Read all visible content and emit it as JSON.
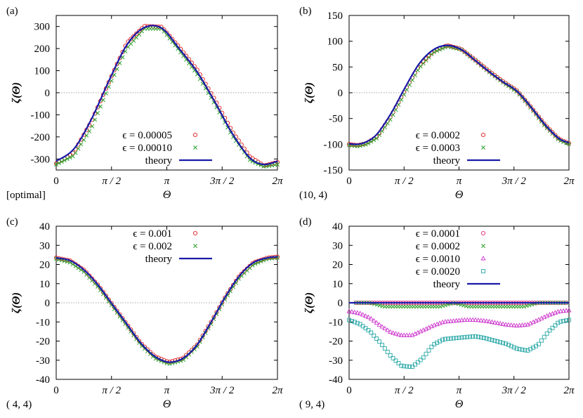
{
  "chart_data": [
    {
      "panel_label": "(a)",
      "case_label": "[optimal]",
      "type": "scatter",
      "xlabel": "Θ",
      "ylabel": "ζ(Θ)",
      "xlim": [
        0,
        6.2832
      ],
      "ylim": [
        -350,
        350
      ],
      "yticks": [
        -300,
        -200,
        -100,
        0,
        100,
        200,
        300
      ],
      "ytick_labels": [
        "-300",
        "-200",
        "-100",
        "0",
        "100",
        "200",
        "300"
      ],
      "xticks": [
        0,
        1.5708,
        3.1416,
        4.7124,
        6.2832
      ],
      "xtick_labels": [
        "0",
        "π / 2",
        "π",
        "3π / 2",
        "2π"
      ],
      "zero_line": true,
      "legend_position": "bottom-right",
      "series": [
        {
          "name": "ϵ = 0.00005",
          "marker": "circle",
          "color": "#e41a1c",
          "x": [
            0,
            0.5,
            1.0,
            1.5,
            2.0,
            2.5,
            3.0,
            3.5,
            4.0,
            4.5,
            5.0,
            5.5,
            5.9,
            6.2832
          ],
          "y": [
            -320,
            -270,
            -130,
            50,
            225,
            302,
            298,
            205,
            105,
            -30,
            -175,
            -290,
            -330,
            -315
          ]
        },
        {
          "name": "ϵ = 0.00010",
          "marker": "cross",
          "color": "#2ca02c",
          "x": [
            0,
            0.5,
            1.0,
            1.5,
            2.0,
            2.5,
            3.0,
            3.5,
            4.0,
            4.5,
            5.0,
            5.5,
            5.9,
            6.2832
          ],
          "y": [
            -325,
            -285,
            -160,
            30,
            200,
            290,
            290,
            190,
            85,
            -50,
            -195,
            -305,
            -335,
            -325
          ]
        },
        {
          "name": "theory",
          "marker": "line",
          "color": "#1a1aa8",
          "x": [
            0,
            0.5,
            1.0,
            1.5,
            2.0,
            2.5,
            3.0,
            3.5,
            4.0,
            4.5,
            5.0,
            5.5,
            5.9,
            6.2832
          ],
          "y": [
            -310,
            -255,
            -120,
            55,
            215,
            295,
            292,
            198,
            95,
            -40,
            -185,
            -295,
            -325,
            -310
          ]
        }
      ]
    },
    {
      "panel_label": "(b)",
      "case_label": "(10, 4)",
      "type": "scatter",
      "xlabel": "Θ",
      "ylabel": "ζ(Θ)",
      "xlim": [
        0,
        6.2832
      ],
      "ylim": [
        -150,
        150
      ],
      "yticks": [
        -150,
        -100,
        -50,
        0,
        50,
        100,
        150
      ],
      "ytick_labels": [
        "-150",
        "-100",
        "-50",
        "0",
        "50",
        "100",
        "150"
      ],
      "xticks": [
        0,
        1.5708,
        3.1416,
        4.7124,
        6.2832
      ],
      "xtick_labels": [
        "0",
        "π / 2",
        "π",
        "3π / 2",
        "2π"
      ],
      "zero_line": true,
      "legend_position": "bottom-right",
      "series": [
        {
          "name": "ϵ = 0.0002",
          "marker": "circle",
          "color": "#e41a1c",
          "x": [
            0,
            0.25,
            0.5,
            0.8,
            1.2,
            1.6,
            2.0,
            2.4,
            2.8,
            3.2,
            3.6,
            4.0,
            4.4,
            4.8,
            5.2,
            5.6,
            6.0,
            6.2832
          ],
          "y": [
            -100,
            -102,
            -98,
            -85,
            -45,
            5,
            52,
            80,
            92,
            85,
            64,
            42,
            22,
            4,
            -28,
            -62,
            -90,
            -98
          ]
        },
        {
          "name": "ϵ = 0.0003",
          "marker": "cross",
          "color": "#2ca02c",
          "x": [
            0,
            0.25,
            0.5,
            0.8,
            1.2,
            1.6,
            2.0,
            2.4,
            2.8,
            3.2,
            3.6,
            4.0,
            4.4,
            4.8,
            5.2,
            5.6,
            6.0,
            6.2832
          ],
          "y": [
            -102,
            -104,
            -100,
            -88,
            -50,
            0,
            48,
            78,
            90,
            84,
            63,
            40,
            20,
            2,
            -30,
            -65,
            -92,
            -100
          ]
        },
        {
          "name": "theory",
          "marker": "line",
          "color": "#1a1aa8",
          "x": [
            0,
            0.25,
            0.5,
            0.8,
            1.2,
            1.6,
            2.0,
            2.4,
            2.8,
            3.2,
            3.6,
            4.0,
            4.4,
            4.8,
            5.2,
            5.6,
            6.0,
            6.2832
          ],
          "y": [
            -99,
            -100,
            -95,
            -80,
            -40,
            10,
            56,
            83,
            92,
            84,
            63,
            41,
            21,
            3,
            -28,
            -62,
            -89,
            -97
          ]
        }
      ]
    },
    {
      "panel_label": "(c)",
      "case_label": "( 4, 4)",
      "type": "scatter",
      "xlabel": "Θ",
      "ylabel": "ζ(Θ)",
      "xlim": [
        0,
        6.2832
      ],
      "ylim": [
        -40,
        40
      ],
      "yticks": [
        -40,
        -30,
        -20,
        -10,
        0,
        10,
        20,
        30,
        40
      ],
      "ytick_labels": [
        "-40",
        "-30",
        "-20",
        "-10",
        "0",
        "10",
        "20",
        "30",
        "40"
      ],
      "xticks": [
        0,
        1.5708,
        3.1416,
        4.7124,
        6.2832
      ],
      "xtick_labels": [
        "0",
        "π / 2",
        "π",
        "3π / 2",
        "2π"
      ],
      "zero_line": true,
      "legend_position": "top-right",
      "series": [
        {
          "name": "ϵ = 0.001",
          "marker": "circle",
          "color": "#e41a1c",
          "x": [
            0,
            0.4,
            0.8,
            1.2,
            1.6,
            2.0,
            2.4,
            2.8,
            3.2,
            3.6,
            4.0,
            4.4,
            4.8,
            5.2,
            5.6,
            6.0,
            6.2832
          ],
          "y": [
            23.5,
            22,
            17,
            9,
            -1,
            -11,
            -21,
            -28,
            -31,
            -29,
            -22,
            -10,
            3,
            14,
            21,
            23.5,
            24
          ]
        },
        {
          "name": "ϵ = 0.002",
          "marker": "cross",
          "color": "#2ca02c",
          "x": [
            0,
            0.4,
            0.8,
            1.2,
            1.6,
            2.0,
            2.4,
            2.8,
            3.2,
            3.6,
            4.0,
            4.4,
            4.8,
            5.2,
            5.6,
            6.0,
            6.2832
          ],
          "y": [
            23,
            21,
            16,
            8,
            -2,
            -12,
            -22,
            -29,
            -32,
            -30,
            -23,
            -11,
            2,
            13,
            20,
            23,
            23.5
          ]
        },
        {
          "name": "theory",
          "marker": "line",
          "color": "#1a1aa8",
          "x": [
            0,
            0.4,
            0.8,
            1.2,
            1.6,
            2.0,
            2.4,
            2.8,
            3.2,
            3.6,
            4.0,
            4.4,
            4.8,
            5.2,
            5.6,
            6.0,
            6.2832
          ],
          "y": [
            23.5,
            22,
            17,
            9,
            -1,
            -11,
            -21,
            -28,
            -31,
            -29,
            -22,
            -10,
            3,
            14,
            21,
            23.5,
            24
          ]
        }
      ]
    },
    {
      "panel_label": "(d)",
      "case_label": "( 9, 4)",
      "type": "scatter",
      "xlabel": "Θ",
      "ylabel": "ζ(Θ)",
      "xlim": [
        0,
        6.2832
      ],
      "ylim": [
        -40,
        40
      ],
      "yticks": [
        -40,
        -30,
        -20,
        -10,
        0,
        10,
        20,
        30,
        40
      ],
      "ytick_labels": [
        "-40",
        "-30",
        "-20",
        "-10",
        "0",
        "10",
        "20",
        "30",
        "40"
      ],
      "xticks": [
        0,
        1.5708,
        3.1416,
        4.7124,
        6.2832
      ],
      "xtick_labels": [
        "0",
        "π / 2",
        "π",
        "3π / 2",
        "2π"
      ],
      "zero_line": true,
      "legend_position": "top-right",
      "series": [
        {
          "name": "ϵ = 0.0001",
          "marker": "circle",
          "color": "#e8207a",
          "x": [
            0.2,
            0.6,
            1.0,
            1.4,
            1.8,
            2.2,
            2.6,
            3.0,
            3.4,
            3.8,
            4.2,
            4.6,
            5.0,
            5.4,
            5.8,
            6.2
          ],
          "y": [
            0,
            0,
            0,
            0,
            0,
            0,
            0,
            0,
            0,
            0,
            0,
            0,
            0,
            0,
            0,
            0
          ]
        },
        {
          "name": "ϵ = 0.0002",
          "marker": "cross",
          "color": "#2ca02c",
          "x": [
            0.2,
            0.6,
            1.0,
            1.4,
            1.8,
            2.2,
            2.6,
            3.0,
            3.4,
            3.8,
            4.2,
            4.6,
            5.0,
            5.4,
            5.8,
            6.2
          ],
          "y": [
            0,
            0,
            -2,
            -2,
            -2,
            -2,
            -2,
            0,
            -2,
            -2,
            -2,
            -2,
            -2,
            0,
            0,
            0
          ]
        },
        {
          "name": "ϵ = 0.0010",
          "marker": "triangle",
          "color": "#cc33cc",
          "x": [
            0,
            0.3,
            0.6,
            0.9,
            1.2,
            1.5,
            1.8,
            2.1,
            2.4,
            2.7,
            3.0,
            3.3,
            3.6,
            3.9,
            4.2,
            4.5,
            4.8,
            5.1,
            5.4,
            5.7,
            6.0,
            6.2832
          ],
          "y": [
            -4.5,
            -5.5,
            -8,
            -12,
            -15.5,
            -17,
            -17,
            -14.5,
            -12,
            -10,
            -9.5,
            -9,
            -9,
            -9.5,
            -10.5,
            -11.5,
            -12,
            -11.5,
            -9,
            -6.5,
            -4.5,
            -4
          ]
        },
        {
          "name": "ϵ = 0.0020",
          "marker": "square",
          "color": "#2aa7a7",
          "x": [
            0,
            0.3,
            0.6,
            0.9,
            1.2,
            1.5,
            1.8,
            2.1,
            2.4,
            2.7,
            3.0,
            3.3,
            3.6,
            3.9,
            4.2,
            4.5,
            4.8,
            5.1,
            5.4,
            5.7,
            6.0,
            6.2832
          ],
          "y": [
            -9,
            -11,
            -15,
            -21,
            -28,
            -33,
            -33.5,
            -29,
            -22,
            -19,
            -18.5,
            -18,
            -17.5,
            -18.5,
            -20,
            -21.5,
            -24,
            -25,
            -22,
            -15,
            -10,
            -9
          ]
        },
        {
          "name": "theory",
          "marker": "line",
          "color": "#1a1aa8",
          "x": [
            0,
            1.5708,
            3.1416,
            4.7124,
            6.2832
          ],
          "y": [
            0,
            0,
            0,
            0,
            0
          ]
        }
      ]
    }
  ]
}
